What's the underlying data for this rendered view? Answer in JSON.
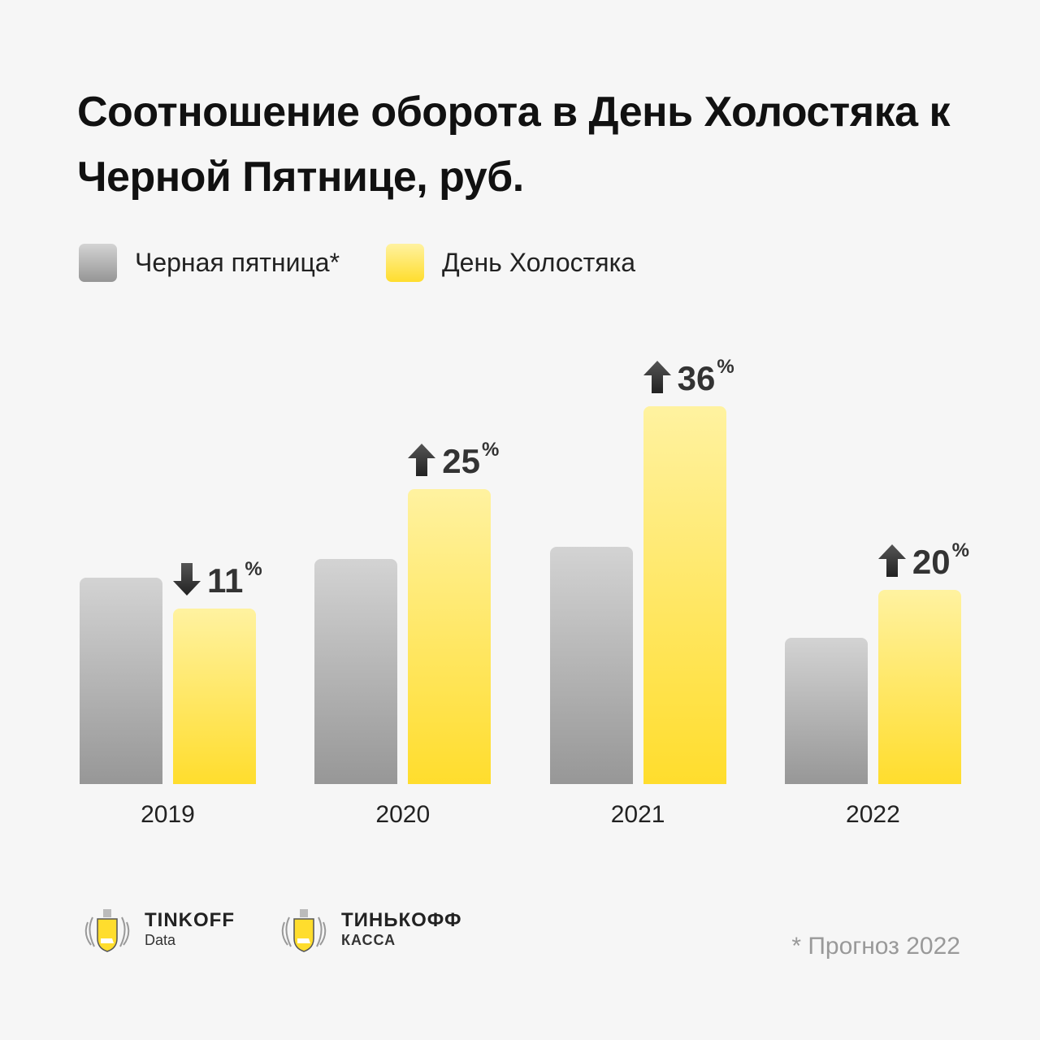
{
  "chart_data": {
    "type": "bar",
    "title": "Соотношение оборота в День Холостяка к Черной Пятнице, руб.",
    "categories": [
      "2019",
      "2020",
      "2021",
      "2022"
    ],
    "series": [
      {
        "name": "Черная пятница*",
        "values": [
          100,
          109,
          115,
          71
        ],
        "color": "#b5b5b5"
      },
      {
        "name": "День Холостяка",
        "values": [
          85,
          143,
          183,
          94
        ],
        "color": "#ffdd2d"
      }
    ],
    "value_units": "relative index (2019 Black Friday = 100), no axis shown",
    "change_labels": [
      {
        "direction": "down",
        "value": "11",
        "unit": "%"
      },
      {
        "direction": "up",
        "value": "25",
        "unit": "%"
      },
      {
        "direction": "up",
        "value": "36",
        "unit": "%"
      },
      {
        "direction": "up",
        "value": "20",
        "unit": "%"
      }
    ],
    "legend": "top-left",
    "grid": false
  },
  "title": "Соотношение оборота в День Холостяка к Черной Пятнице, руб.",
  "legend": {
    "gray": "Черная пятница*",
    "yellow": "День Холостяка"
  },
  "footer": {
    "logo1_name": "TINKOFF",
    "logo1_sub": "Data",
    "logo2_name": "ТИНЬКОФФ",
    "logo2_sub": "КАССА",
    "note": "* Прогноз 2022"
  }
}
